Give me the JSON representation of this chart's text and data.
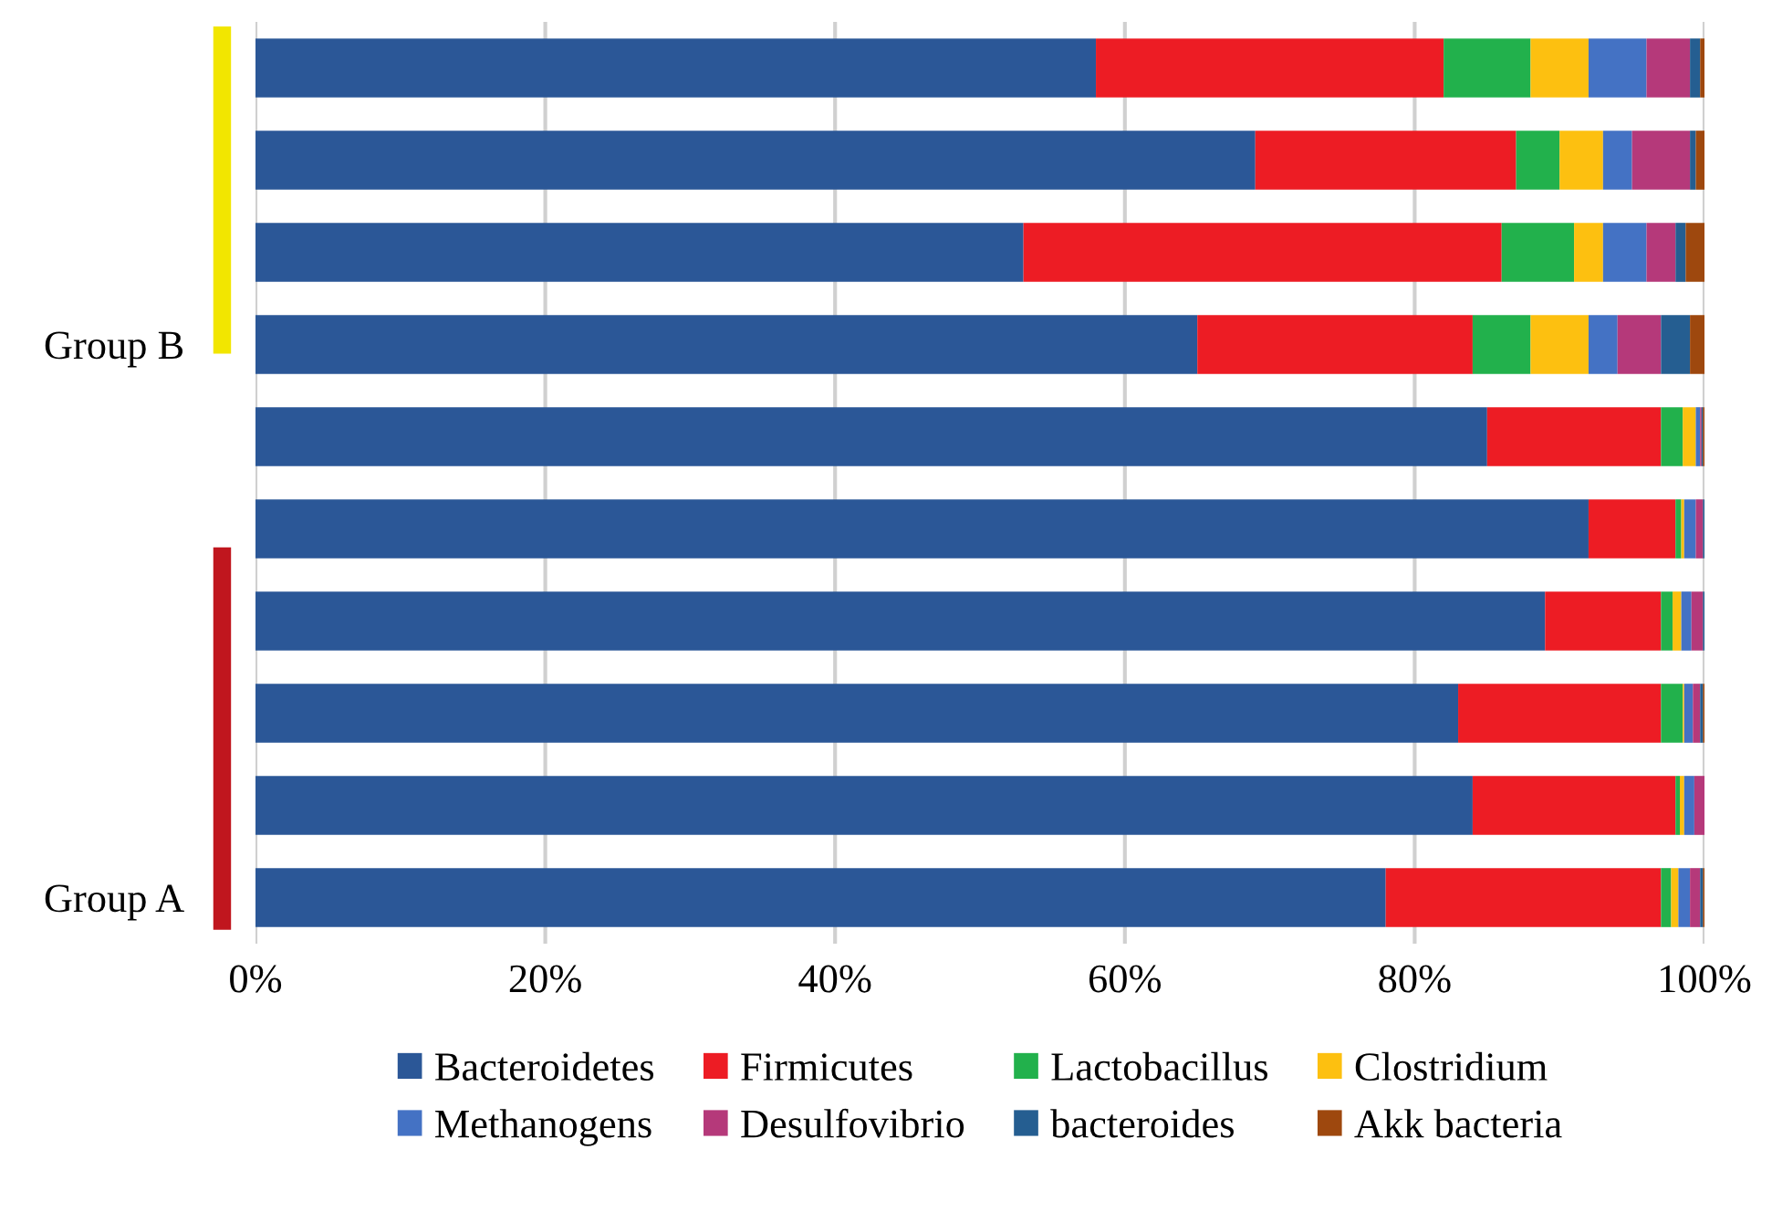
{
  "chart_data": {
    "type": "bar",
    "orientation": "horizontal",
    "stacked": true,
    "categories": [
      null,
      null,
      null,
      "Group B",
      null,
      null,
      null,
      null,
      null,
      "Group A"
    ],
    "series": [
      {
        "name": "Bacteroidetes",
        "color": "#2b5797",
        "values": [
          58,
          69,
          53,
          65,
          85,
          92,
          89,
          83,
          84,
          78
        ]
      },
      {
        "name": "Firmicutes",
        "color": "#ed1c24",
        "values": [
          24,
          18,
          33,
          19,
          12,
          6,
          8,
          14,
          14,
          19
        ]
      },
      {
        "name": "Lactobacillus",
        "color": "#22b14c",
        "values": [
          6,
          3,
          5,
          4,
          1.5,
          0.4,
          0.8,
          1.5,
          0.3,
          0.7
        ]
      },
      {
        "name": "Clostridium",
        "color": "#fdc010",
        "values": [
          4,
          3,
          2,
          4,
          0.9,
          0.2,
          0.6,
          0.1,
          0.3,
          0.5
        ]
      },
      {
        "name": "Methanogens",
        "color": "#4472c4",
        "values": [
          4,
          2,
          3,
          2,
          0.3,
          0.8,
          0.7,
          0.6,
          0.7,
          0.8
        ]
      },
      {
        "name": "Desulfovibrio",
        "color": "#b5397a",
        "values": [
          3,
          4,
          2,
          3,
          0.1,
          0.5,
          0.8,
          0.5,
          0.7,
          0.7
        ]
      },
      {
        "name": "bacteroides",
        "color": "#255e91",
        "values": [
          0.7,
          0.4,
          0.7,
          2,
          0.1,
          0.1,
          0.1,
          0.2,
          0.1,
          0.2
        ]
      },
      {
        "name": "Akk bacteria",
        "color": "#9e480e",
        "values": [
          0.3,
          0.6,
          1.3,
          1,
          0.1,
          0.1,
          0.1,
          0.1,
          0,
          0.1
        ]
      }
    ],
    "xlim": [
      0,
      100
    ],
    "xticks": [
      {
        "value": 0,
        "label": "0%"
      },
      {
        "value": 20,
        "label": "20%"
      },
      {
        "value": 40,
        "label": "40%"
      },
      {
        "value": 60,
        "label": "60%"
      },
      {
        "value": 80,
        "label": "80%"
      },
      {
        "value": 100,
        "label": "100%"
      }
    ],
    "grid": "x",
    "legend": "bottom"
  }
}
